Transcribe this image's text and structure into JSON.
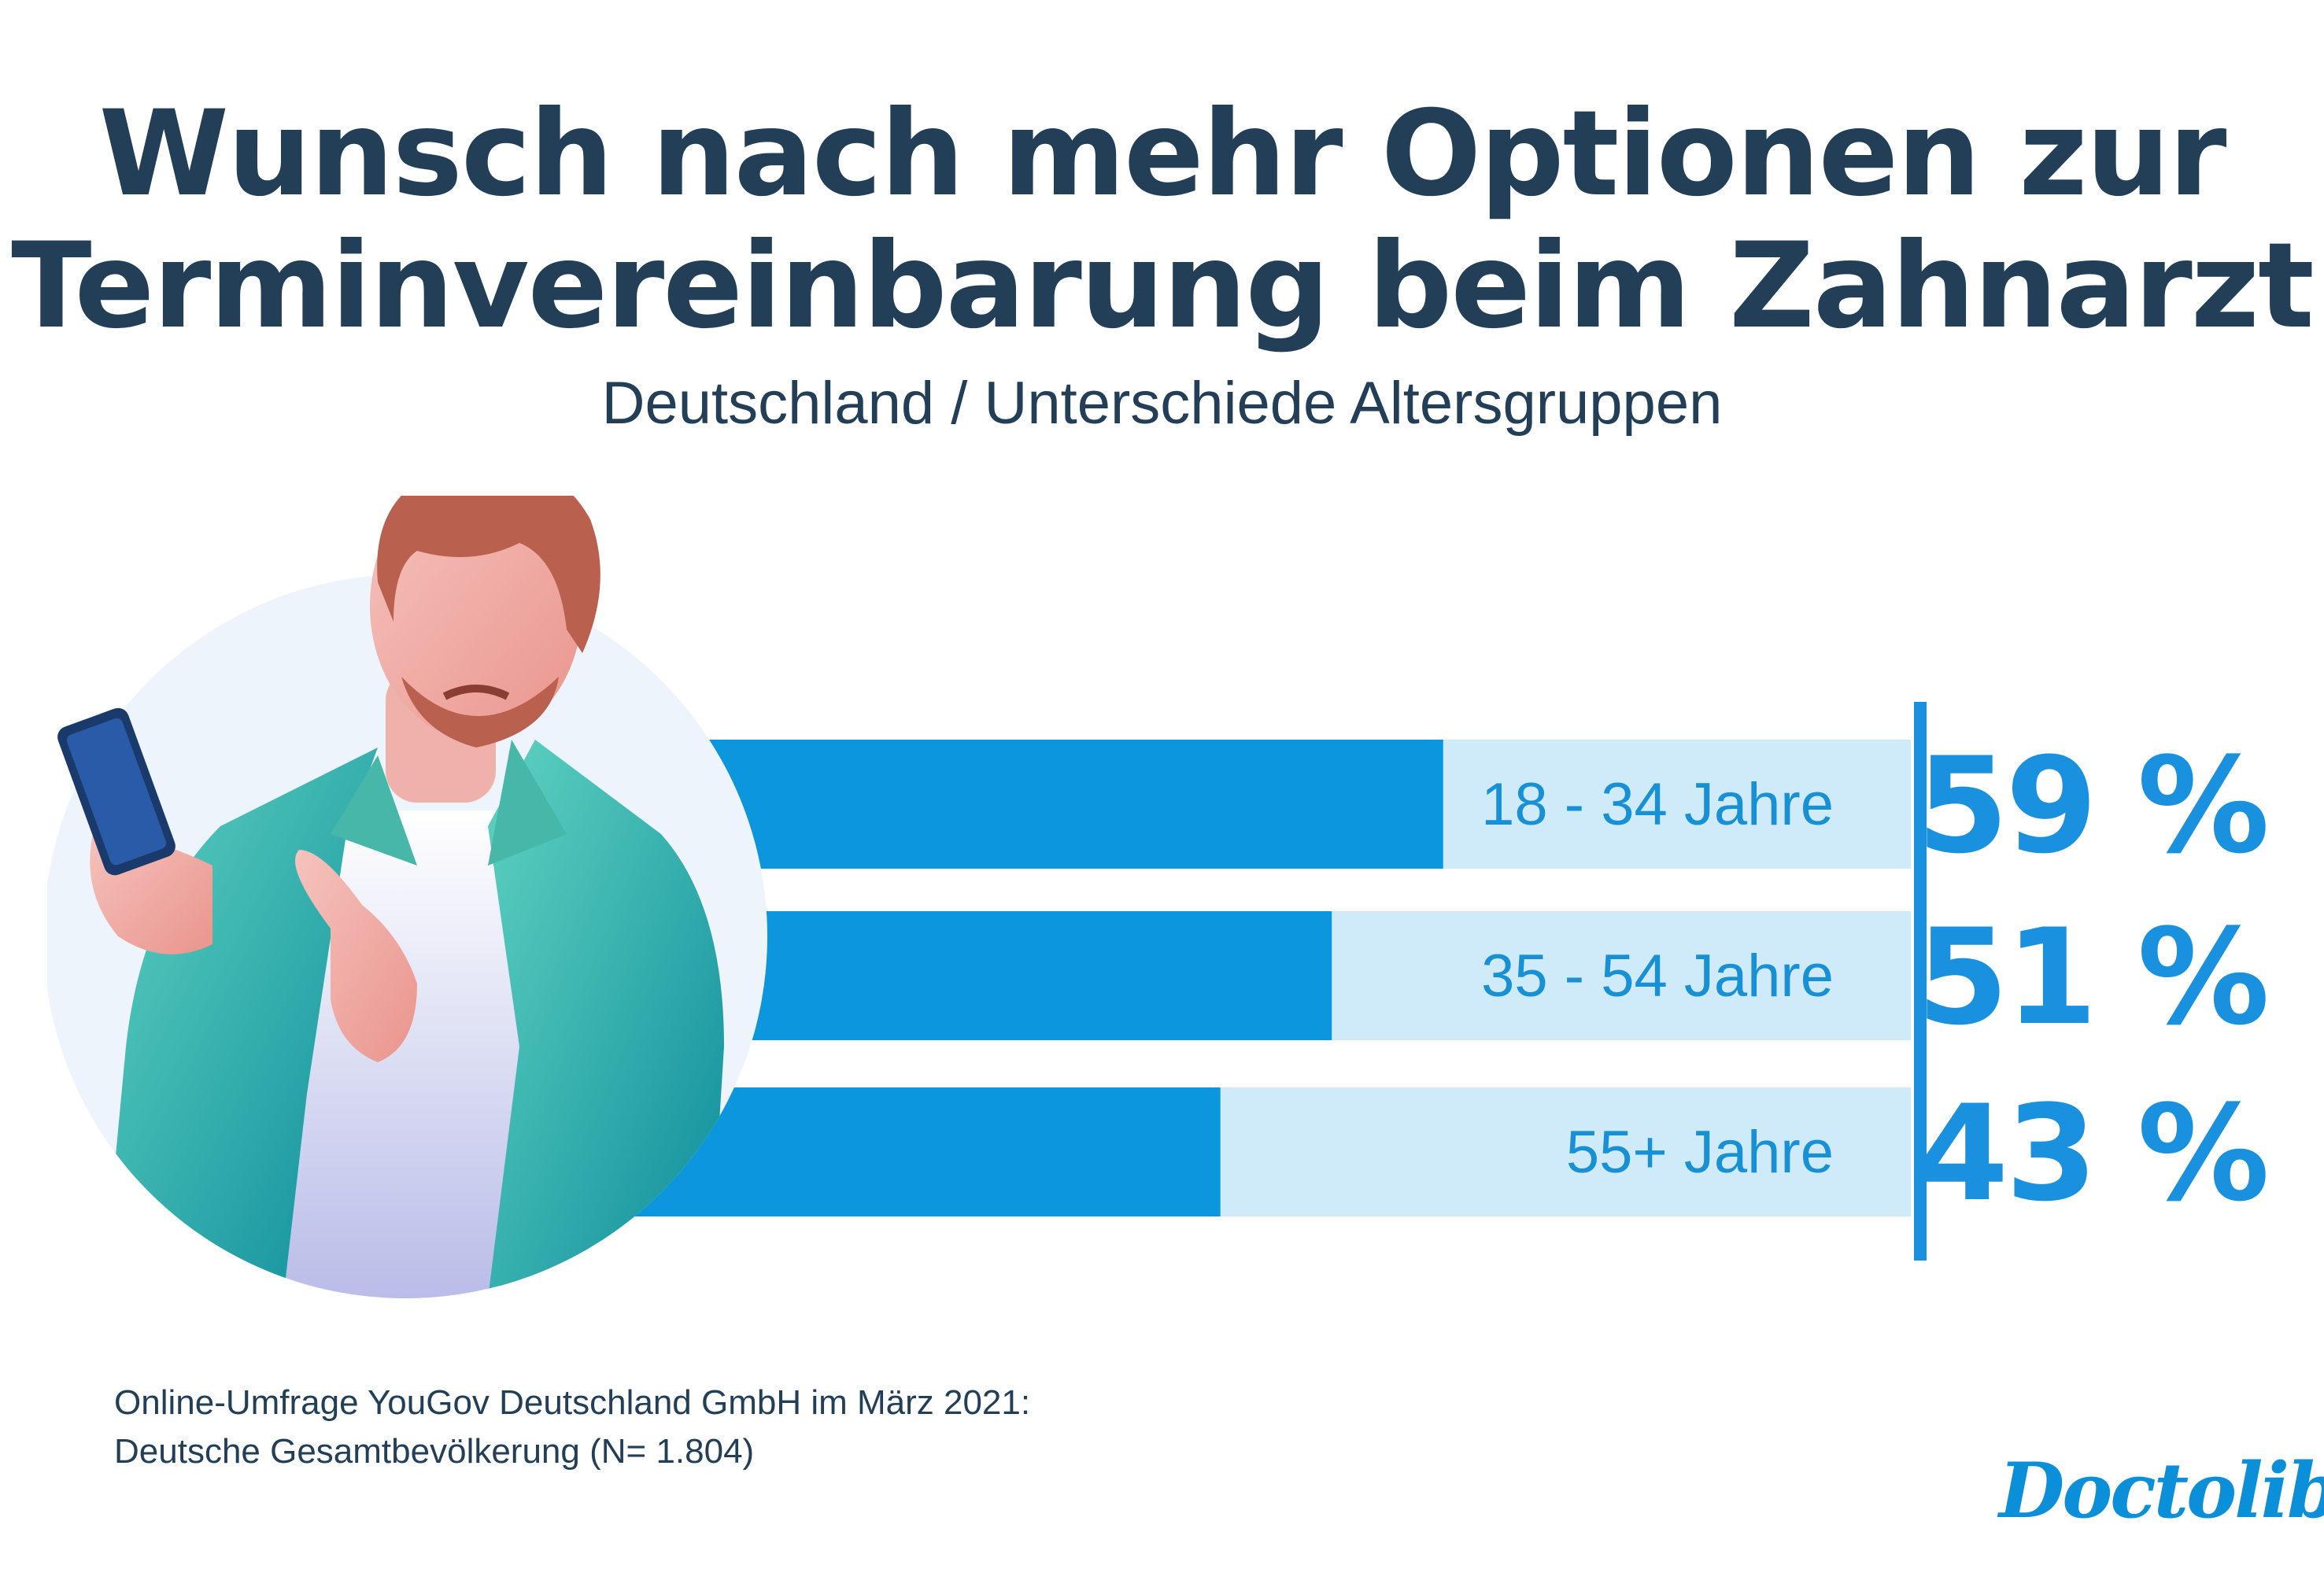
{
  "chart_data": {
    "type": "bar",
    "orientation": "horizontal",
    "title": "Wunsch nach mehr Optionen zur Terminvereinbarung beim Zahnarzt",
    "subtitle": "Deutschland / Unterschiede Altersgruppen",
    "categories": [
      "18 - 34 Jahre",
      "35 - 54 Jahre",
      "55+ Jahre"
    ],
    "values": [
      59,
      51,
      43
    ],
    "value_labels": [
      "59 %",
      "51 %",
      "43 %"
    ],
    "xlim": [
      0,
      100
    ],
    "grid": false,
    "legend": "none",
    "colors": {
      "fill": "#0b96dd",
      "track": "#cfeaf8",
      "label": "#1890d6",
      "value": "#1a91df",
      "divider": "#1a91df"
    }
  },
  "source_lines": [
    "Online-Umfrage YouGov Deutschland GmbH im März 2021:",
    "Deutsche Gesamtbevölkerung (N= 1.804)"
  ],
  "logo": "Doctolib",
  "illustration": "person-with-smartphone"
}
